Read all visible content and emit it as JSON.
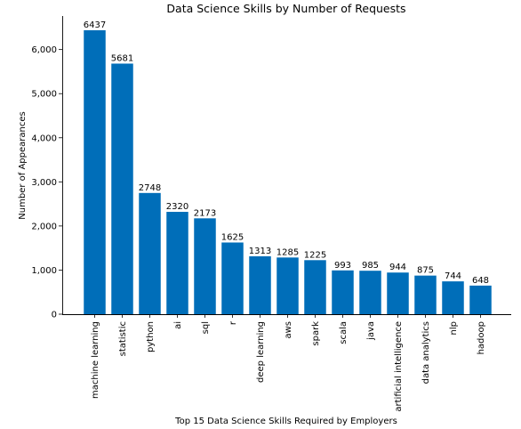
{
  "chart_data": {
    "type": "bar",
    "title": "Data Science Skills by Number of Requests",
    "xlabel": "Top 15 Data Science Skills Required by Employers",
    "ylabel": "Number of Appearances",
    "categories": [
      "machine learning",
      "statistic",
      "python",
      "ai",
      "sql",
      "r",
      "deep learning",
      "aws",
      "spark",
      "scala",
      "java",
      "artificial intelligence",
      "data analytics",
      "nlp",
      "hadoop"
    ],
    "values": [
      6437,
      5681,
      2748,
      2320,
      2173,
      1625,
      1313,
      1285,
      1225,
      993,
      985,
      944,
      875,
      744,
      648
    ],
    "ylim": [
      0,
      6760
    ],
    "yticks": [
      0,
      1000,
      2000,
      3000,
      4000,
      5000,
      6000
    ],
    "ytick_labels": [
      "0",
      "1,000",
      "2,000",
      "3,000",
      "4,000",
      "5,000",
      "6,000"
    ],
    "bar_color": "#006eb9",
    "data_labels": true,
    "grid": false,
    "legend": "none"
  }
}
